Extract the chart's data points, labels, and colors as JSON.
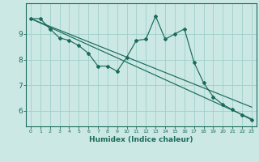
{
  "xlabel": "Humidex (Indice chaleur)",
  "ylabel": "",
  "bg_color": "#cce8e5",
  "line_color": "#1a6b5a",
  "grid_color": "#9ecfca",
  "x_data": [
    0,
    1,
    2,
    3,
    4,
    5,
    6,
    7,
    8,
    9,
    10,
    11,
    12,
    13,
    14,
    15,
    16,
    17,
    18,
    19,
    20,
    21,
    22,
    23
  ],
  "y_main": [
    9.6,
    9.6,
    9.2,
    8.85,
    8.75,
    8.55,
    8.25,
    7.75,
    7.75,
    7.55,
    8.1,
    8.75,
    8.8,
    9.7,
    8.8,
    9.0,
    9.2,
    7.9,
    7.1,
    6.55,
    6.25,
    6.05,
    5.85,
    5.65
  ],
  "y_line2": [
    9.6,
    9.45,
    9.3,
    9.15,
    9.0,
    8.85,
    8.7,
    8.55,
    8.4,
    8.25,
    8.1,
    7.95,
    7.8,
    7.65,
    7.5,
    7.35,
    7.2,
    7.05,
    6.9,
    6.75,
    6.6,
    6.45,
    6.3,
    6.15
  ],
  "y_line3": [
    9.6,
    9.43,
    9.26,
    9.09,
    8.92,
    8.75,
    8.58,
    8.41,
    8.24,
    8.07,
    7.9,
    7.73,
    7.56,
    7.39,
    7.22,
    7.05,
    6.88,
    6.71,
    6.54,
    6.37,
    6.2,
    6.03,
    5.86,
    5.69
  ],
  "ylim": [
    5.4,
    10.2
  ],
  "yticks": [
    6,
    7,
    8,
    9
  ],
  "xlim": [
    -0.5,
    23.5
  ],
  "xticks": [
    0,
    1,
    2,
    3,
    4,
    5,
    6,
    7,
    8,
    9,
    10,
    11,
    12,
    13,
    14,
    15,
    16,
    17,
    18,
    19,
    20,
    21,
    22,
    23
  ]
}
